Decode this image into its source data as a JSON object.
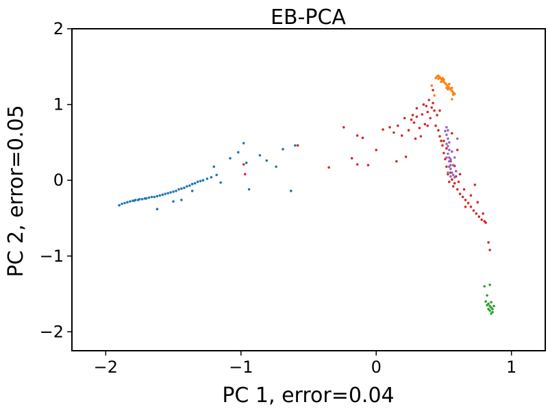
{
  "chart_data": {
    "type": "scatter",
    "title": "EB-PCA",
    "xlabel": "PC 1, error=0.04",
    "ylabel": "PC 2, error=0.05",
    "xlim": [
      -2.25,
      1.25
    ],
    "ylim": [
      -2.25,
      2.0
    ],
    "xticks": [
      -2,
      -1,
      0,
      1
    ],
    "yticks": [
      -2,
      -1,
      0,
      1,
      2
    ],
    "xtick_labels": [
      "−2",
      "−1",
      "0",
      "1"
    ],
    "ytick_labels": [
      "−2",
      "−1",
      "0",
      "1",
      "2"
    ],
    "grid": false,
    "legend": "none",
    "series": [
      {
        "color": "#1f77b4",
        "points": [
          [
            -1.9,
            -0.33
          ],
          [
            -1.88,
            -0.31
          ],
          [
            -1.86,
            -0.3
          ],
          [
            -1.84,
            -0.29
          ],
          [
            -1.82,
            -0.28
          ],
          [
            -1.8,
            -0.27
          ],
          [
            -1.79,
            -0.27
          ],
          [
            -1.78,
            -0.26
          ],
          [
            -1.76,
            -0.26
          ],
          [
            -1.75,
            -0.25
          ],
          [
            -1.73,
            -0.25
          ],
          [
            -1.71,
            -0.24
          ],
          [
            -1.7,
            -0.24
          ],
          [
            -1.68,
            -0.23
          ],
          [
            -1.66,
            -0.22
          ],
          [
            -1.64,
            -0.22
          ],
          [
            -1.62,
            -0.21
          ],
          [
            -1.6,
            -0.2
          ],
          [
            -1.58,
            -0.19
          ],
          [
            -1.56,
            -0.18
          ],
          [
            -1.54,
            -0.17
          ],
          [
            -1.52,
            -0.16
          ],
          [
            -1.5,
            -0.15
          ],
          [
            -1.48,
            -0.14
          ],
          [
            -1.46,
            -0.12
          ],
          [
            -1.44,
            -0.11
          ],
          [
            -1.42,
            -0.1
          ],
          [
            -1.4,
            -0.08
          ],
          [
            -1.38,
            -0.07
          ],
          [
            -1.36,
            -0.05
          ],
          [
            -1.34,
            -0.04
          ],
          [
            -1.32,
            -0.02
          ],
          [
            -1.3,
            -0.01
          ],
          [
            -1.28,
            0.0
          ],
          [
            -1.25,
            0.02
          ],
          [
            -1.22,
            0.04
          ],
          [
            -1.62,
            -0.38
          ],
          [
            -1.5,
            -0.28
          ],
          [
            -1.44,
            -0.26
          ],
          [
            -1.36,
            -0.14
          ],
          [
            -1.18,
            0.07
          ],
          [
            -1.2,
            0.18
          ],
          [
            -1.15,
            -0.03
          ],
          [
            -1.08,
            0.29
          ],
          [
            -1.02,
            0.37
          ],
          [
            -0.98,
            0.49
          ],
          [
            -0.96,
            0.23
          ],
          [
            -0.94,
            -0.12
          ],
          [
            -0.86,
            0.33
          ],
          [
            -0.81,
            0.26
          ],
          [
            -0.74,
            0.18
          ],
          [
            -0.69,
            0.41
          ],
          [
            -0.63,
            -0.14
          ],
          [
            -0.6,
            0.46
          ]
        ]
      },
      {
        "color": "#ff7f0e",
        "points": [
          [
            0.44,
            1.35
          ],
          [
            0.45,
            1.37
          ],
          [
            0.46,
            1.38
          ],
          [
            0.47,
            1.36
          ],
          [
            0.48,
            1.34
          ],
          [
            0.49,
            1.32
          ],
          [
            0.5,
            1.3
          ],
          [
            0.51,
            1.28
          ],
          [
            0.52,
            1.26
          ],
          [
            0.53,
            1.24
          ],
          [
            0.54,
            1.22
          ],
          [
            0.55,
            1.2
          ],
          [
            0.56,
            1.18
          ],
          [
            0.57,
            1.16
          ],
          [
            0.58,
            1.14
          ],
          [
            0.46,
            1.34
          ],
          [
            0.48,
            1.3
          ],
          [
            0.5,
            1.33
          ],
          [
            0.52,
            1.22
          ],
          [
            0.54,
            1.27
          ],
          [
            0.56,
            1.22
          ],
          [
            0.49,
            1.35
          ],
          [
            0.53,
            1.2
          ],
          [
            0.57,
            1.13
          ],
          [
            0.41,
            1.25
          ],
          [
            0.43,
            1.12
          ],
          [
            0.56,
            1.07
          ]
        ]
      },
      {
        "color": "#2ca02c",
        "points": [
          [
            0.84,
            -1.66
          ],
          [
            0.85,
            -1.68
          ],
          [
            0.83,
            -1.63
          ],
          [
            0.86,
            -1.7
          ],
          [
            0.84,
            -1.72
          ],
          [
            0.82,
            -1.65
          ],
          [
            0.85,
            -1.61
          ],
          [
            0.87,
            -1.66
          ],
          [
            0.83,
            -1.7
          ],
          [
            0.86,
            -1.74
          ],
          [
            0.8,
            -1.4
          ],
          [
            0.84,
            -1.38
          ],
          [
            0.82,
            -1.52
          ],
          [
            0.85,
            -1.76
          ],
          [
            0.81,
            -1.6
          ]
        ]
      },
      {
        "color": "#d62728",
        "points": [
          [
            -0.24,
            0.7
          ],
          [
            -0.14,
            0.59
          ],
          [
            -0.1,
            0.56
          ],
          [
            -0.35,
            0.17
          ],
          [
            -0.18,
            0.29
          ],
          [
            -0.14,
            0.21
          ],
          [
            -0.06,
            0.2
          ],
          [
            0.05,
            0.67
          ],
          [
            0.1,
            0.7
          ],
          [
            0.13,
            0.63
          ],
          [
            0.16,
            0.72
          ],
          [
            0.19,
            0.59
          ],
          [
            0.21,
            0.82
          ],
          [
            0.24,
            0.66
          ],
          [
            0.26,
            0.8
          ],
          [
            0.28,
            0.76
          ],
          [
            0.3,
            0.84
          ],
          [
            0.32,
            0.69
          ],
          [
            0.34,
            0.87
          ],
          [
            0.36,
            0.74
          ],
          [
            0.37,
            0.98
          ],
          [
            0.38,
            0.9
          ],
          [
            0.39,
            1.06
          ],
          [
            0.4,
            0.82
          ],
          [
            0.41,
            0.96
          ],
          [
            0.42,
            1.02
          ],
          [
            0.43,
            0.92
          ],
          [
            0.44,
            0.72
          ],
          [
            0.45,
            0.86
          ],
          [
            0.46,
            0.66
          ],
          [
            0.47,
            0.58
          ],
          [
            0.48,
            0.52
          ],
          [
            0.49,
            0.46
          ],
          [
            0.5,
            0.36
          ],
          [
            0.51,
            0.28
          ],
          [
            0.52,
            0.18
          ],
          [
            0.53,
            0.08
          ],
          [
            0.54,
            -0.02
          ],
          [
            0.55,
            0.1
          ],
          [
            0.56,
            0.01
          ],
          [
            0.57,
            -0.08
          ],
          [
            0.58,
            -0.04
          ],
          [
            0.6,
            -0.12
          ],
          [
            0.62,
            -0.18
          ],
          [
            0.64,
            -0.22
          ],
          [
            0.66,
            -0.26
          ],
          [
            0.68,
            -0.3
          ],
          [
            0.7,
            -0.35
          ],
          [
            0.72,
            -0.4
          ],
          [
            0.74,
            -0.44
          ],
          [
            0.76,
            -0.48
          ],
          [
            0.78,
            -0.52
          ],
          [
            0.8,
            -0.54
          ],
          [
            0.81,
            -0.56
          ],
          [
            0.83,
            -0.82
          ],
          [
            0.84,
            -0.92
          ],
          [
            0.15,
            0.25
          ],
          [
            0.22,
            0.31
          ],
          [
            0.0,
            0.4
          ],
          [
            0.29,
            0.55
          ],
          [
            0.33,
            0.58
          ],
          [
            0.27,
            0.86
          ],
          [
            0.42,
            1.19
          ],
          [
            0.47,
            0.92
          ],
          [
            0.5,
            0.52
          ],
          [
            0.56,
            0.62
          ],
          [
            0.6,
            0.4
          ],
          [
            0.62,
            0.08
          ],
          [
            0.65,
            -0.12
          ],
          [
            0.7,
            -0.2
          ],
          [
            0.73,
            -0.06
          ],
          [
            -0.98,
            0.21
          ],
          [
            -0.97,
            0.08
          ],
          [
            -0.58,
            0.46
          ],
          [
            0.3,
            0.95
          ],
          [
            0.35,
            1.0
          ],
          [
            0.38,
            0.72
          ],
          [
            0.52,
            0.42
          ],
          [
            0.55,
            0.25
          ],
          [
            0.58,
            0.19
          ],
          [
            0.61,
            -0.02
          ],
          [
            0.59,
            0.05
          ],
          [
            0.66,
            -0.35
          ],
          [
            0.75,
            -0.29
          ],
          [
            0.79,
            -0.44
          ]
        ]
      },
      {
        "color": "#9467bd",
        "points": [
          [
            0.52,
            0.7
          ],
          [
            0.53,
            0.66
          ],
          [
            0.52,
            0.6
          ],
          [
            0.53,
            0.55
          ],
          [
            0.54,
            0.5
          ],
          [
            0.53,
            0.45
          ],
          [
            0.54,
            0.4
          ],
          [
            0.53,
            0.35
          ],
          [
            0.54,
            0.3
          ],
          [
            0.54,
            0.25
          ],
          [
            0.55,
            0.2
          ],
          [
            0.55,
            0.15
          ],
          [
            0.56,
            0.1
          ],
          [
            0.57,
            0.07
          ],
          [
            0.58,
            0.04
          ],
          [
            0.59,
            0.12
          ],
          [
            0.55,
            0.28
          ],
          [
            0.52,
            0.48
          ],
          [
            0.56,
            0.38
          ],
          [
            0.6,
            0.55
          ],
          [
            0.51,
            0.65
          ],
          [
            0.54,
            0.18
          ],
          [
            0.57,
            0.2
          ],
          [
            0.53,
            0.1
          ],
          [
            0.55,
            0.05
          ],
          [
            0.58,
            0.3
          ],
          [
            0.52,
            0.3
          ]
        ]
      }
    ]
  }
}
